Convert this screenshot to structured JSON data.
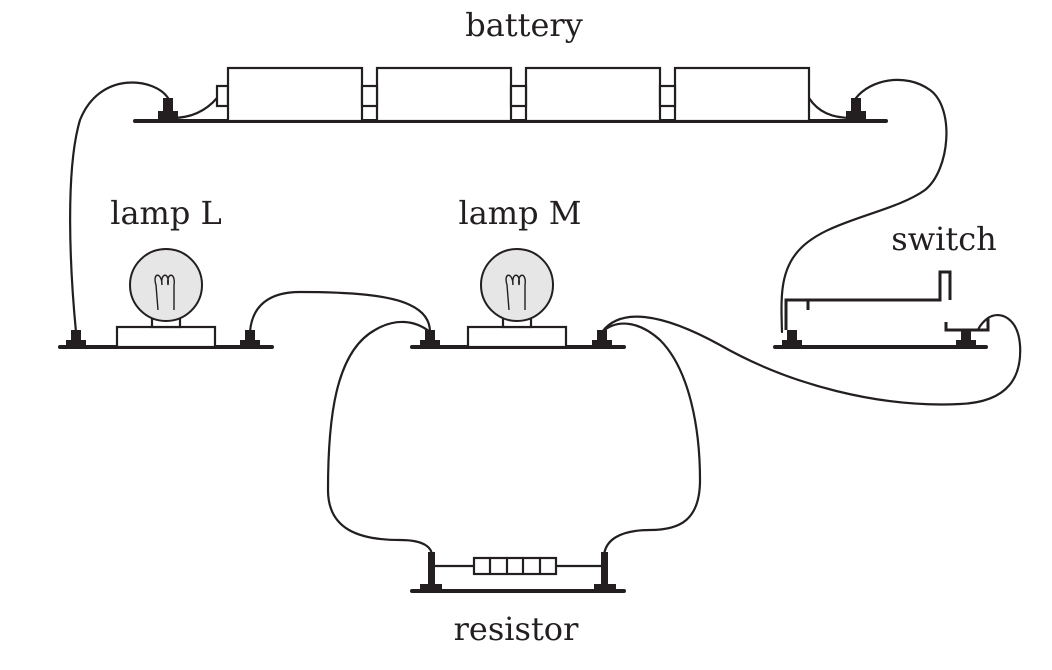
{
  "labels": {
    "battery": "battery",
    "lamp_l": "lamp L",
    "lamp_m": "lamp M",
    "switch": "switch",
    "resistor": "resistor"
  },
  "colors": {
    "ink": "#231f20",
    "bulb_glass": "#e6e6e6",
    "background": "#ffffff"
  }
}
